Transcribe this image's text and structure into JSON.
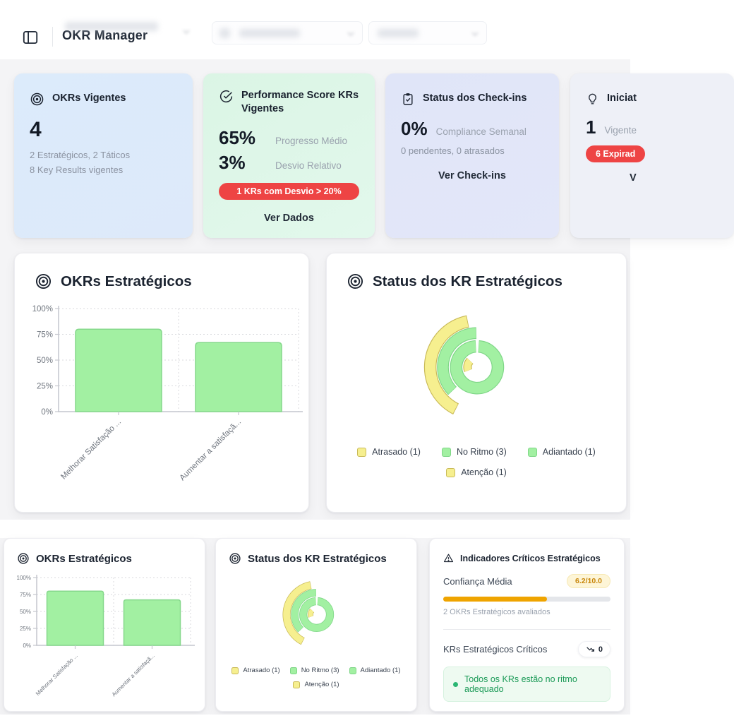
{
  "header": {
    "title": "OKR Manager"
  },
  "stat_cards": {
    "okrs_vigentes": {
      "title": "OKRs Vigentes",
      "value": "4",
      "line1": "2 Estratégicos, 2 Táticos",
      "line2": "8 Key Results vigentes"
    },
    "performance": {
      "title": "Performance Score KRs Vigentes",
      "metric1_value": "65%",
      "metric1_label": "Progresso Médio",
      "metric2_value": "3%",
      "metric2_label": "Desvio Relativo",
      "alert": "1 KRs com Desvio > 20%",
      "link": "Ver Dados"
    },
    "checkins": {
      "title": "Status dos Check-ins",
      "metric_value": "0%",
      "metric_label": "Compliance Semanal",
      "line": "0 pendentes, 0 atrasados",
      "link": "Ver Check-ins"
    },
    "iniciativas": {
      "title": "Iniciat",
      "value": "1",
      "value_label": "Vigente",
      "alert": "6 Expirad",
      "link": "V"
    }
  },
  "indicators": {
    "title": "Indicadores Críticos Estratégicos",
    "confidence_label": "Confiança Média",
    "confidence_badge": "6.2/10.0",
    "confidence_pct": 62,
    "evaluated": "2 OKRs Estratégicos avaliados",
    "critical_label": "KRs Estratégicos Críticos",
    "critical_count": "0",
    "status_message": "Todos os KRs estão no ritmo adequado"
  },
  "chart_data": [
    {
      "id": "okrs-estrategicos-bar",
      "type": "bar",
      "title": "OKRs Estratégicos",
      "categories": [
        "Melhorar Satisfação ...",
        "Aumentar a satisfaçã..."
      ],
      "values": [
        80,
        67
      ],
      "xlabel": "",
      "ylabel": "",
      "ylim": [
        0,
        100
      ],
      "yticks": [
        "0%",
        "25%",
        "50%",
        "75%",
        "100%"
      ],
      "grid": "dotted",
      "bar_color": "#a2f0a2",
      "bar_border": "#85d88b",
      "instances": [
        "main-panel",
        "bottom-panel"
      ]
    },
    {
      "id": "status-kr-estrategicos-donut",
      "type": "donut",
      "title": "Status dos KR Estratégicos",
      "series": [
        {
          "name": "Atrasado",
          "value": 1,
          "color": "#f6ef8f"
        },
        {
          "name": "No Ritmo",
          "value": 3,
          "color": "#a2f0a2"
        },
        {
          "name": "Adiantado",
          "value": 1,
          "color": "#a2f0a2"
        },
        {
          "name": "Atenção",
          "value": 1,
          "color": "#f6ef8f"
        }
      ],
      "legend": [
        "Atrasado (1)",
        "No Ritmo (3)",
        "Adiantado (1)",
        "Atenção (1)"
      ],
      "legend_position": "bottom",
      "instances": [
        "main-panel",
        "bottom-panel"
      ]
    }
  ],
  "colors": {
    "green_fill": "#a2f0a2",
    "green_border": "#7fd687",
    "yellow_fill": "#f6ef8f",
    "yellow_border": "#c9ba58",
    "alert_red": "#ee4444",
    "amber": "#efa400",
    "card_blue_bg": "#dbe9fa",
    "card_green_bg": "#def6e7",
    "card_lavender_bg": "#e1e6f8"
  }
}
